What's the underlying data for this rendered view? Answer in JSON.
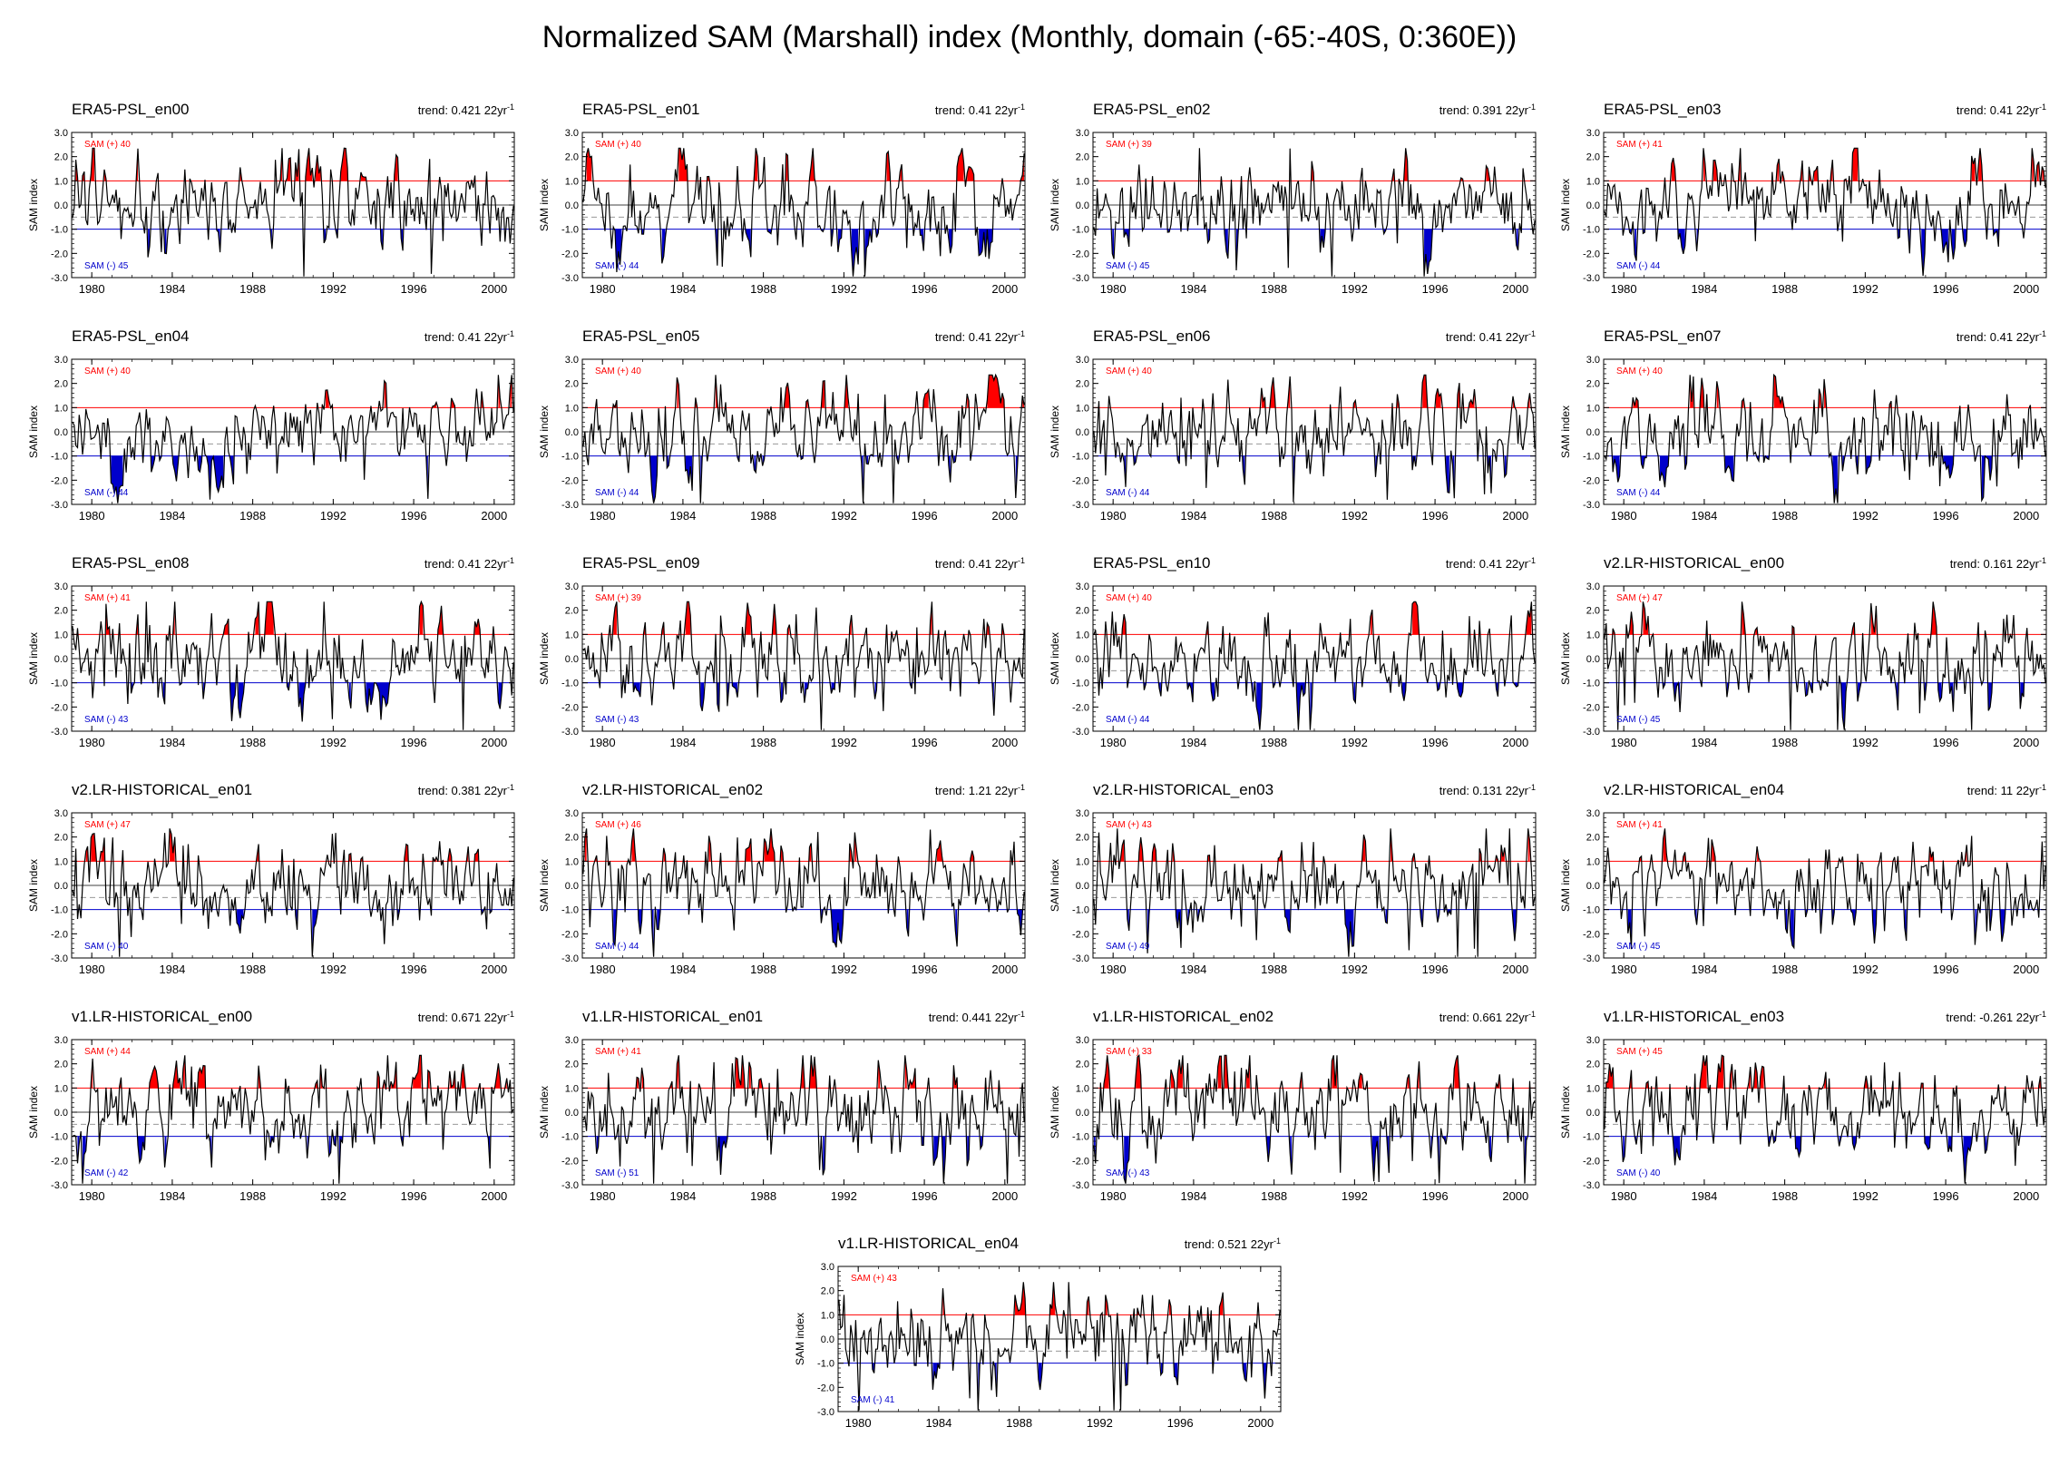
{
  "title": "Normalized SAM (Marshall) index (Monthly, domain (-65:-40S, 0:360E))",
  "colors": {
    "positive": "#ff0000",
    "negative": "#0000cc",
    "line": "#000000"
  },
  "chart_data": {
    "type": "line",
    "ylabel": "SAM index",
    "yticks": [
      "3.0",
      "2.0",
      "1.0",
      "0.0",
      "-1.0",
      "-2.0",
      "-3.0"
    ],
    "ylim": [
      -3,
      3
    ],
    "xticks": [
      "1980",
      "1984",
      "1988",
      "1992",
      "1996",
      "2000"
    ],
    "xlim": [
      1979,
      2001
    ],
    "thresholds": {
      "upper": 1.0,
      "lower": -1.0
    },
    "panels": [
      {
        "name": "ERA5-PSL_en00",
        "trend_label": "trend: 0.421",
        "pos_label": "SAM (+) 40",
        "neg_label": "SAM (-) 45",
        "seed": 11
      },
      {
        "name": "ERA5-PSL_en01",
        "trend_label": "trend: 0.41",
        "pos_label": "SAM (+) 40",
        "neg_label": "SAM (-) 44",
        "seed": 12
      },
      {
        "name": "ERA5-PSL_en02",
        "trend_label": "trend: 0.391",
        "pos_label": "SAM (+) 39",
        "neg_label": "SAM (-) 45",
        "seed": 13
      },
      {
        "name": "ERA5-PSL_en03",
        "trend_label": "trend: 0.41",
        "pos_label": "SAM (+) 41",
        "neg_label": "SAM (-) 44",
        "seed": 14
      },
      {
        "name": "ERA5-PSL_en04",
        "trend_label": "trend: 0.41",
        "pos_label": "SAM (+) 40",
        "neg_label": "SAM (-) 44",
        "seed": 15
      },
      {
        "name": "ERA5-PSL_en05",
        "trend_label": "trend: 0.41",
        "pos_label": "SAM (+) 40",
        "neg_label": "SAM (-) 44",
        "seed": 16
      },
      {
        "name": "ERA5-PSL_en06",
        "trend_label": "trend: 0.41",
        "pos_label": "SAM (+) 40",
        "neg_label": "SAM (-) 44",
        "seed": 17
      },
      {
        "name": "ERA5-PSL_en07",
        "trend_label": "trend: 0.41",
        "pos_label": "SAM (+) 40",
        "neg_label": "SAM (-) 44",
        "seed": 18
      },
      {
        "name": "ERA5-PSL_en08",
        "trend_label": "trend: 0.41",
        "pos_label": "SAM (+) 41",
        "neg_label": "SAM (-) 43",
        "seed": 19
      },
      {
        "name": "ERA5-PSL_en09",
        "trend_label": "trend: 0.41",
        "pos_label": "SAM (+) 39",
        "neg_label": "SAM (-) 43",
        "seed": 20
      },
      {
        "name": "ERA5-PSL_en10",
        "trend_label": "trend: 0.41",
        "pos_label": "SAM (+) 40",
        "neg_label": "SAM (-) 44",
        "seed": 21
      },
      {
        "name": "v2.LR-HISTORICAL_en00",
        "trend_label": "trend: 0.161",
        "pos_label": "SAM (+) 47",
        "neg_label": "SAM (-) 45",
        "seed": 31
      },
      {
        "name": "v2.LR-HISTORICAL_en01",
        "trend_label": "trend: 0.381",
        "pos_label": "SAM (+) 47",
        "neg_label": "SAM (-) 40",
        "seed": 32
      },
      {
        "name": "v2.LR-HISTORICAL_en02",
        "trend_label": "trend: 1.21",
        "pos_label": "SAM (+) 46",
        "neg_label": "SAM (-) 44",
        "seed": 33
      },
      {
        "name": "v2.LR-HISTORICAL_en03",
        "trend_label": "trend: 0.131",
        "pos_label": "SAM (+) 43",
        "neg_label": "SAM (-) 49",
        "seed": 34
      },
      {
        "name": "v2.LR-HISTORICAL_en04",
        "trend_label": "trend: 11",
        "pos_label": "SAM (+) 41",
        "neg_label": "SAM (-) 45",
        "seed": 35
      },
      {
        "name": "v1.LR-HISTORICAL_en00",
        "trend_label": "trend: 0.671",
        "pos_label": "SAM (+) 44",
        "neg_label": "SAM (-) 42",
        "seed": 41
      },
      {
        "name": "v1.LR-HISTORICAL_en01",
        "trend_label": "trend: 0.441",
        "pos_label": "SAM (+) 41",
        "neg_label": "SAM (-) 51",
        "seed": 42
      },
      {
        "name": "v1.LR-HISTORICAL_en02",
        "trend_label": "trend: 0.661",
        "pos_label": "SAM (+) 33",
        "neg_label": "SAM (-) 43",
        "seed": 43
      },
      {
        "name": "v1.LR-HISTORICAL_en03",
        "trend_label": "trend: -0.261",
        "pos_label": "SAM (+) 45",
        "neg_label": "SAM (-) 40",
        "seed": 44
      },
      {
        "name": "v1.LR-HISTORICAL_en04",
        "trend_label": "trend: 0.521",
        "pos_label": "SAM (+) 43",
        "neg_label": "SAM (-) 41",
        "seed": 45
      }
    ],
    "trend_unit": "22yr",
    "trend_exponent": "-1"
  }
}
